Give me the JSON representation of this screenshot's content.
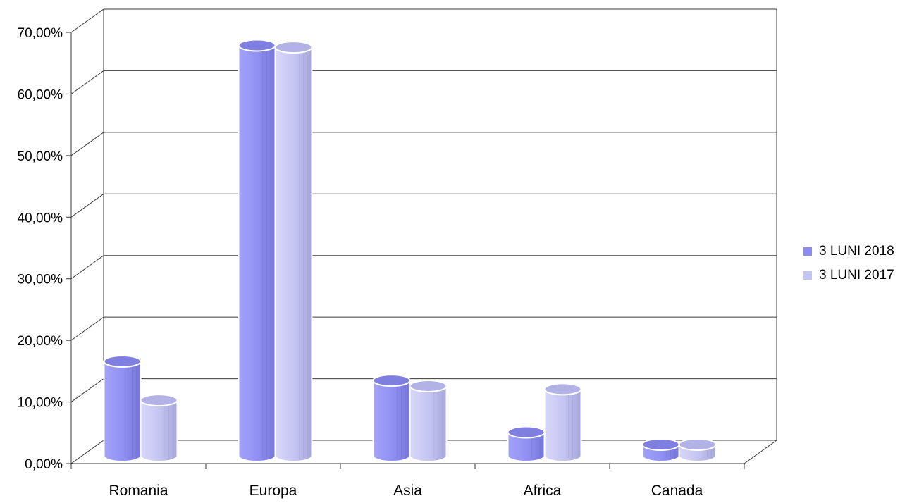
{
  "chart_data": {
    "type": "bar",
    "categories": [
      "Romania",
      "Europa",
      "Asia",
      "Africa",
      "Canada"
    ],
    "series": [
      {
        "name": "3 LUNI 2018",
        "values": [
          15.1,
          66.4,
          12.0,
          3.6,
          1.6
        ]
      },
      {
        "name": "3 LUNI 2017",
        "values": [
          8.8,
          66.1,
          11.1,
          10.6,
          1.6
        ]
      }
    ],
    "ylim": [
      0,
      70
    ],
    "yticks": [
      "0,00%",
      "10,00%",
      "20,00%",
      "30,00%",
      "40,00%",
      "50,00%",
      "60,00%",
      "70,00%"
    ],
    "grid": true,
    "legend_position": "right",
    "colors": [
      "#8c8cf0",
      "#c4c4f4"
    ]
  }
}
